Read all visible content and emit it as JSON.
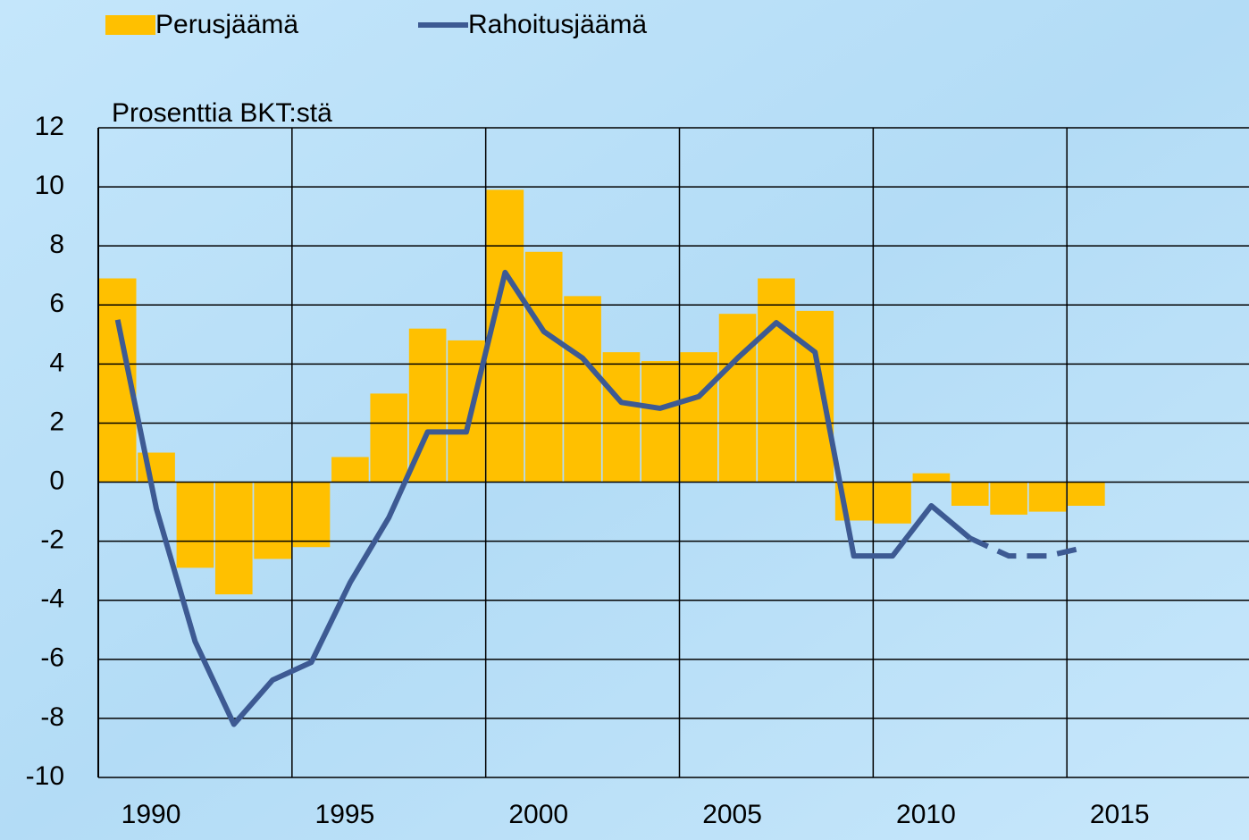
{
  "chart_data": {
    "type": "bar_line",
    "axis_label": "Prosenttia BKT:stä",
    "x": [
      1990,
      1991,
      1992,
      1993,
      1994,
      1995,
      1996,
      1997,
      1998,
      1999,
      2000,
      2001,
      2002,
      2003,
      2004,
      2005,
      2006,
      2007,
      2008,
      2009,
      2010,
      2011,
      2012,
      2013,
      2014,
      2015
    ],
    "series": [
      {
        "name": "Perusjäämä",
        "kind": "bar",
        "color": "#ffc000",
        "values": [
          6.9,
          1.0,
          -2.9,
          -3.8,
          -2.6,
          -2.2,
          0.85,
          3.0,
          5.2,
          4.8,
          9.9,
          7.8,
          6.3,
          4.4,
          4.1,
          4.4,
          5.7,
          6.9,
          5.8,
          -1.3,
          -1.4,
          0.3,
          -0.8,
          -1.1,
          -1.0,
          -0.8
        ]
      },
      {
        "name": "Rahoitusjäämä",
        "kind": "line",
        "color": "#3d5a93",
        "dashed_from": 2012,
        "values": [
          5.5,
          -0.9,
          -5.4,
          -8.2,
          -6.7,
          -6.1,
          -3.4,
          -1.2,
          1.7,
          1.7,
          7.1,
          5.1,
          4.2,
          2.7,
          2.5,
          2.9,
          4.2,
          5.4,
          4.4,
          -2.5,
          -2.5,
          -0.8,
          -1.9,
          -2.5,
          -2.5,
          -2.2
        ]
      }
    ],
    "xlim": [
      1989.5,
      2019.2
    ],
    "xticks": [
      1990,
      1995,
      2000,
      2005,
      2010,
      2015
    ],
    "ylim": [
      -10,
      12
    ],
    "yticks": [
      -10,
      -8,
      -6,
      -4,
      -2,
      0,
      2,
      4,
      6,
      8,
      10,
      12
    ],
    "grid": true
  }
}
